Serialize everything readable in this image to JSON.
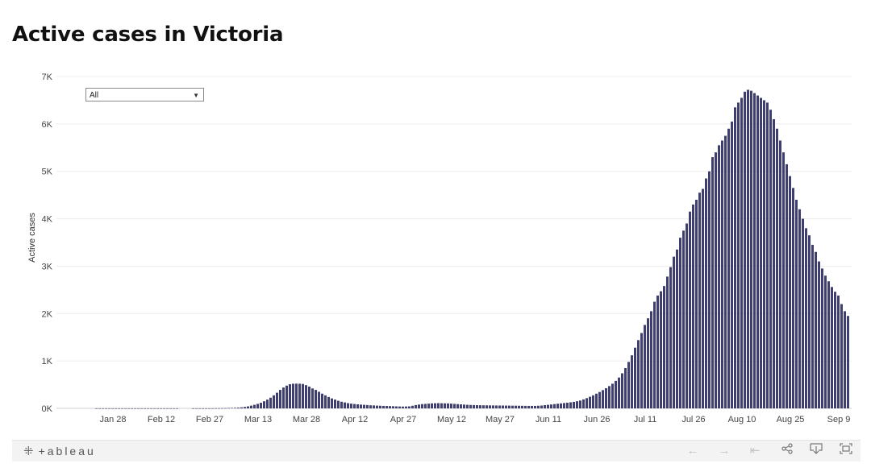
{
  "title": "Active cases in Victoria",
  "filter": {
    "selected": "All"
  },
  "toolbar": {
    "logo_text": "+ableau",
    "icons": [
      "undo-icon",
      "redo-icon",
      "revert-icon",
      "share-icon",
      "download-icon",
      "fullscreen-icon"
    ]
  },
  "colors": {
    "bar": "#3e3f70",
    "grid": "#ececec",
    "axis_text": "#444444"
  },
  "chart_data": {
    "type": "bar",
    "title": "Active cases in Victoria",
    "xlabel": "",
    "ylabel": "Active cases",
    "ylim": [
      0,
      7000
    ],
    "yticks": [
      0,
      1000,
      2000,
      3000,
      4000,
      5000,
      6000,
      7000
    ],
    "ytick_labels": [
      "0K",
      "1K",
      "2K",
      "3K",
      "4K",
      "5K",
      "6K",
      "7K"
    ],
    "xtick_labels": [
      "Jan 28",
      "Feb 12",
      "Feb 27",
      "Mar 13",
      "Mar 28",
      "Apr 12",
      "Apr 27",
      "May 12",
      "May 27",
      "Jun 11",
      "Jun 26",
      "Jul 11",
      "Jul 26",
      "Aug 10",
      "Aug 25",
      "Sep 9"
    ],
    "start_date": "2020-01-25",
    "values": [
      1,
      1,
      1,
      1,
      1,
      1,
      1,
      1,
      1,
      1,
      1,
      1,
      1,
      1,
      1,
      1,
      1,
      1,
      1,
      1,
      1,
      1,
      1,
      1,
      1,
      1,
      0,
      0,
      0,
      0,
      1,
      1,
      1,
      1,
      1,
      1,
      1,
      3,
      4,
      5,
      6,
      8,
      10,
      12,
      16,
      22,
      30,
      42,
      58,
      75,
      95,
      118,
      150,
      185,
      225,
      275,
      330,
      390,
      440,
      480,
      510,
      520,
      522,
      520,
      515,
      490,
      460,
      420,
      390,
      350,
      310,
      275,
      240,
      210,
      185,
      160,
      140,
      125,
      110,
      100,
      92,
      85,
      80,
      75,
      70,
      65,
      62,
      58,
      55,
      52,
      50,
      48,
      45,
      42,
      40,
      38,
      40,
      42,
      55,
      70,
      80,
      90,
      95,
      100,
      105,
      108,
      110,
      108,
      106,
      104,
      100,
      95,
      90,
      85,
      80,
      75,
      72,
      70,
      68,
      66,
      65,
      64,
      63,
      62,
      61,
      60,
      60,
      59,
      58,
      57,
      56,
      55,
      54,
      53,
      52,
      52,
      52,
      55,
      60,
      68,
      75,
      82,
      90,
      98,
      105,
      112,
      120,
      128,
      138,
      150,
      165,
      190,
      215,
      245,
      275,
      310,
      345,
      385,
      425,
      470,
      520,
      580,
      650,
      740,
      850,
      980,
      1120,
      1280,
      1440,
      1590,
      1760,
      1900,
      2050,
      2250,
      2380,
      2470,
      2580,
      2780,
      2980,
      3200,
      3350,
      3600,
      3750,
      3900,
      4150,
      4300,
      4400,
      4550,
      4630,
      4850,
      5000,
      5300,
      5400,
      5550,
      5650,
      5750,
      5900,
      6050,
      6350,
      6450,
      6550,
      6680,
      6720,
      6700,
      6650,
      6600,
      6550,
      6500,
      6450,
      6300,
      6100,
      5900,
      5650,
      5400,
      5150,
      4900,
      4650,
      4400,
      4200,
      4000,
      3800,
      3650,
      3450,
      3300,
      3100,
      2950,
      2800,
      2680,
      2560,
      2460,
      2380,
      2200,
      2050,
      1950
    ]
  }
}
